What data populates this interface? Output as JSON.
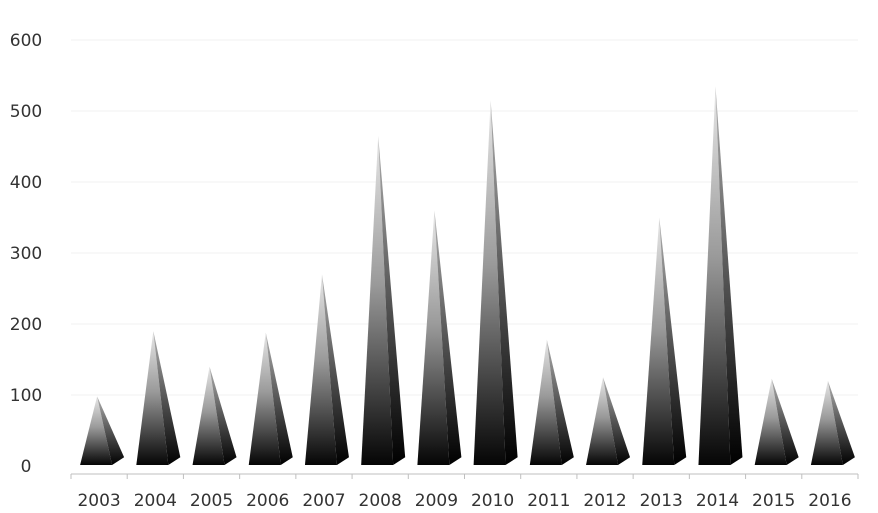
{
  "chart_data": {
    "type": "bar",
    "bar_shape": "pyramid",
    "categories": [
      "2003",
      "2004",
      "2005",
      "2006",
      "2007",
      "2008",
      "2009",
      "2010",
      "2011",
      "2012",
      "2013",
      "2014",
      "2015",
      "2016"
    ],
    "values": [
      98,
      190,
      140,
      188,
      270,
      465,
      360,
      515,
      178,
      125,
      350,
      535,
      123,
      120
    ],
    "title": "",
    "xlabel": "",
    "ylabel": "",
    "ylim": [
      0,
      600
    ],
    "yticks": [
      "0",
      "100",
      "200",
      "300",
      "400",
      "500",
      "600"
    ],
    "grid": true,
    "legend": "none",
    "colors": {
      "pyramid_dark": "#0a0a0a",
      "pyramid_light": "#e6e6e6",
      "gridline": "#f2f2f2",
      "axis": "#bfbfbf",
      "text": "#333333"
    }
  }
}
